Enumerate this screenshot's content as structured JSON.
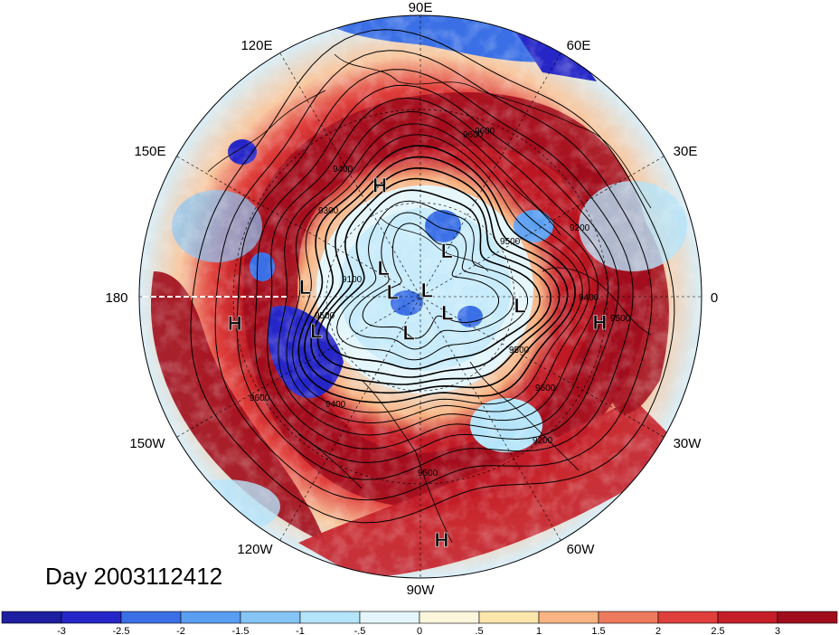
{
  "title": "Day 2003112412",
  "longitude_labels": {
    "top": "90E",
    "top_right": "60E",
    "right_upper": "30E",
    "right": "0",
    "right_lower": "30W",
    "bottom_right": "60W",
    "bottom": "90W",
    "bottom_left": "120W",
    "left_lower": "150W",
    "left": "180",
    "left_upper": "150E",
    "top_left": "120E"
  },
  "pressure_systems": [
    {
      "type": "H",
      "lon": 110,
      "lat": 52
    },
    {
      "type": "L",
      "lon": 60,
      "lat": 73
    },
    {
      "type": "L",
      "lon": 142,
      "lat": 75
    },
    {
      "type": "L",
      "lon": 175,
      "lat": 53
    },
    {
      "type": "L",
      "lon": 45,
      "lat": 87
    },
    {
      "type": "L",
      "lon": 170,
      "lat": 81
    },
    {
      "type": "L",
      "lon": -162,
      "lat": 55
    },
    {
      "type": "L",
      "lon": -108,
      "lat": 78
    },
    {
      "type": "L",
      "lon": -30,
      "lat": 80
    },
    {
      "type": "L",
      "lon": -5,
      "lat": 58
    },
    {
      "type": "H",
      "lon": -8,
      "lat": 32
    },
    {
      "type": "H",
      "lon": -172,
      "lat": 30
    },
    {
      "type": "H",
      "lon": -85,
      "lat": 12
    }
  ],
  "contour_labels": [
    "9600",
    "9400",
    "9300",
    "9500",
    "9200",
    "9100",
    "9500",
    "9500",
    "9200",
    "9500",
    "9600",
    "9400",
    "9600",
    "9500",
    "9400",
    "9600"
  ],
  "colorbar": {
    "ticks": [
      "-3",
      "-2.5",
      "-2",
      "-1.5",
      "-1",
      "-.5",
      "0",
      ".5",
      "1",
      "1.5",
      "2",
      "2.5",
      "3"
    ],
    "colors": [
      "#2626c8",
      "#3a6fe6",
      "#5a9ef2",
      "#86c4f6",
      "#b4e4fa",
      "#e4f6fc",
      "#fcf6dc",
      "#fce6ac",
      "#f8b482",
      "#ee7a5e",
      "#e0403c",
      "#c41e28",
      "#a00c1c"
    ]
  }
}
